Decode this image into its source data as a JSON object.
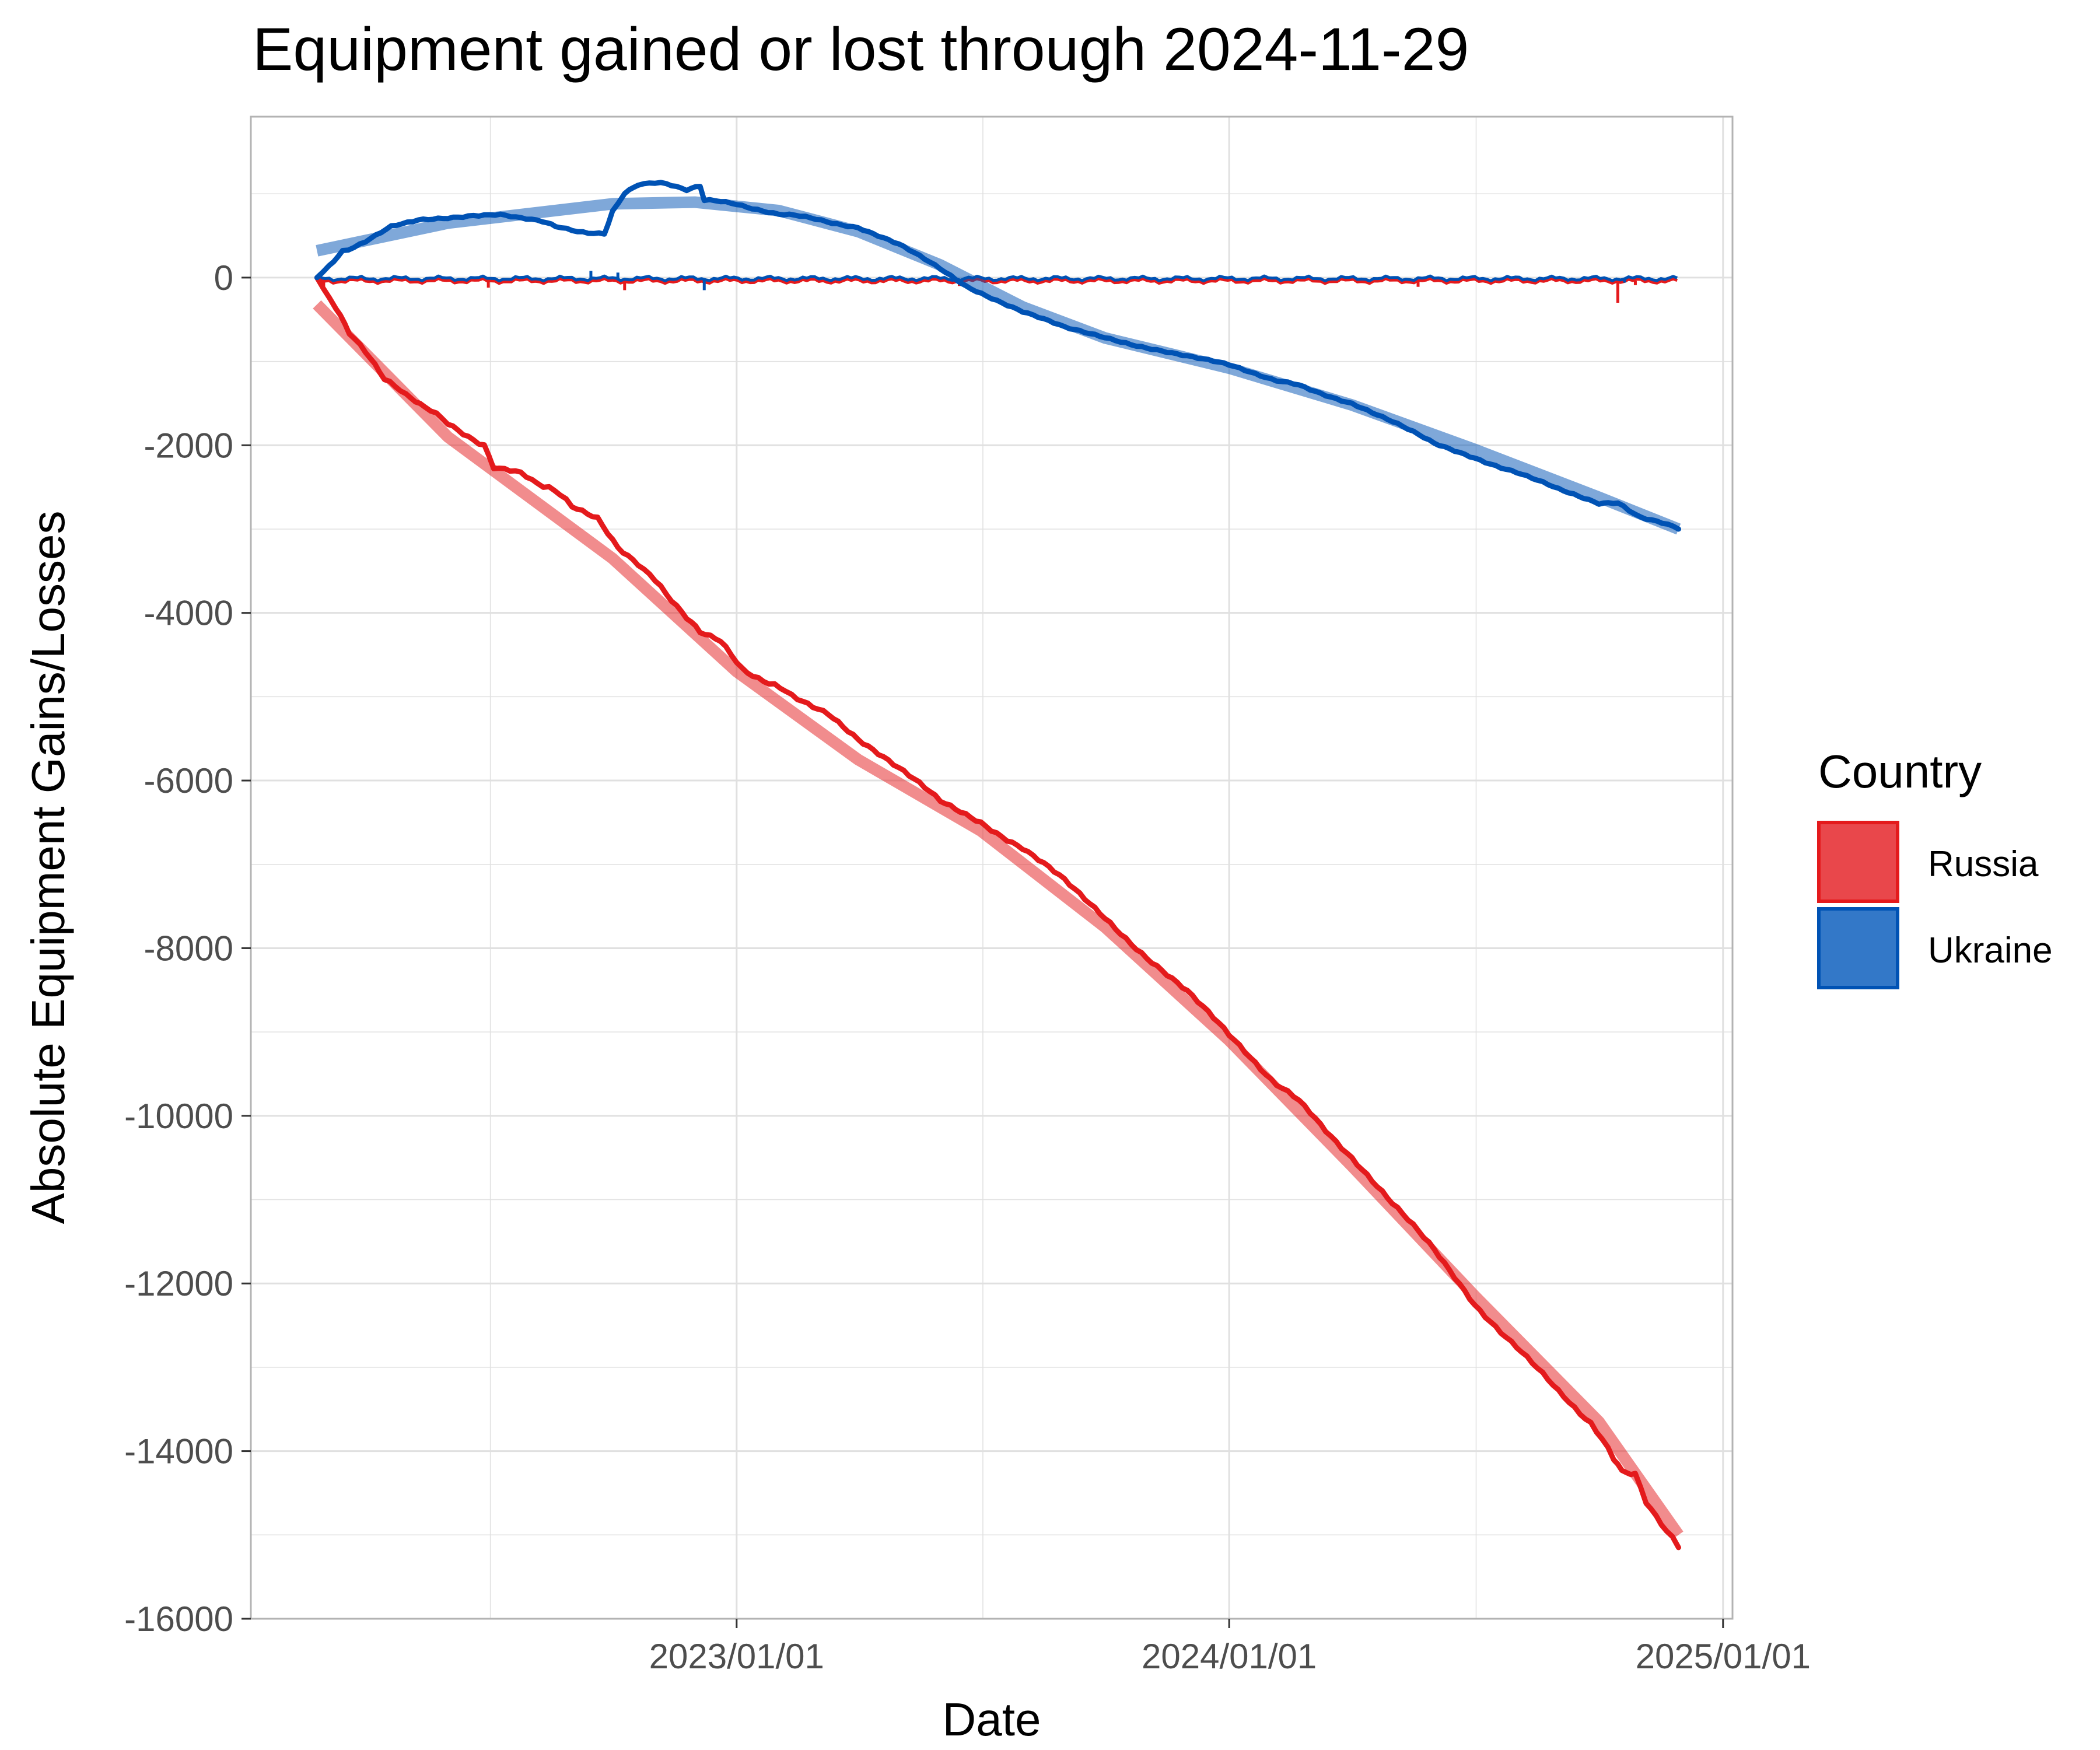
{
  "chart_data": {
    "type": "line",
    "title": "Equipment gained or lost through 2024-11-29",
    "xlabel": "Date",
    "ylabel": "Absolute Equipment Gains/Losses",
    "x_ticks": [
      "2023/01/01",
      "2024/01/01",
      "2025/01/01"
    ],
    "y_ticks": [
      0,
      -2000,
      -4000,
      -6000,
      -8000,
      -10000,
      -12000,
      -14000,
      -16000
    ],
    "y_tick_labels": [
      "0",
      "-2000",
      "-4000",
      "-6000",
      "-8000",
      "-10000",
      "-12000",
      "-14000",
      "-16000"
    ],
    "xlim": [
      "2022-01-06",
      "2025-01-08"
    ],
    "ylim": [
      -16000,
      1920
    ],
    "grid": true,
    "legend": {
      "title": "Country",
      "position": "right",
      "entries": [
        "Russia",
        "Ukraine"
      ]
    },
    "colors": {
      "Russia": "#e41a1c",
      "Russia_fill": "#e9474b",
      "Ukraine": "#0052b4",
      "Ukraine_fill": "#3378c8",
      "grid": "#e0e0e0",
      "panel_border": "#b3b3b3"
    },
    "series": [
      {
        "name": "Russia",
        "cumulative": [
          [
            "2022-02-24",
            0
          ],
          [
            "2022-03-01",
            -120
          ],
          [
            "2022-03-10",
            -380
          ],
          [
            "2022-03-20",
            -650
          ],
          [
            "2022-04-01",
            -900
          ],
          [
            "2022-04-15",
            -1200
          ],
          [
            "2022-05-01",
            -1420
          ],
          [
            "2022-05-15",
            -1560
          ],
          [
            "2022-06-01",
            -1720
          ],
          [
            "2022-06-20",
            -1920
          ],
          [
            "2022-06-28",
            -2000
          ],
          [
            "2022-07-05",
            -2250
          ],
          [
            "2022-07-25",
            -2350
          ],
          [
            "2022-08-15",
            -2500
          ],
          [
            "2022-09-01",
            -2720
          ],
          [
            "2022-09-20",
            -2850
          ],
          [
            "2022-10-05",
            -3200
          ],
          [
            "2022-10-20",
            -3400
          ],
          [
            "2022-11-10",
            -3780
          ],
          [
            "2022-11-25",
            -4050
          ],
          [
            "2022-12-05",
            -4250
          ],
          [
            "2022-12-20",
            -4350
          ],
          [
            "2023-01-05",
            -4650
          ],
          [
            "2023-01-25",
            -4850
          ],
          [
            "2023-02-15",
            -5000
          ],
          [
            "2023-03-10",
            -5200
          ],
          [
            "2023-04-01",
            -5500
          ],
          [
            "2023-05-01",
            -5850
          ],
          [
            "2023-06-01",
            -6250
          ],
          [
            "2023-07-01",
            -6500
          ],
          [
            "2023-08-01",
            -6800
          ],
          [
            "2023-09-01",
            -7200
          ],
          [
            "2023-10-01",
            -7650
          ],
          [
            "2023-11-01",
            -8100
          ],
          [
            "2023-12-01",
            -8500
          ],
          [
            "2024-01-01",
            -9050
          ],
          [
            "2024-02-01",
            -9550
          ],
          [
            "2024-03-01",
            -9950
          ],
          [
            "2024-04-01",
            -10500
          ],
          [
            "2024-05-01",
            -11050
          ],
          [
            "2024-06-01",
            -11600
          ],
          [
            "2024-07-01",
            -12250
          ],
          [
            "2024-08-01",
            -12750
          ],
          [
            "2024-09-01",
            -13300
          ],
          [
            "2024-09-25",
            -13650
          ],
          [
            "2024-10-12",
            -14100
          ],
          [
            "2024-10-18",
            -14250
          ],
          [
            "2024-10-28",
            -14250
          ],
          [
            "2024-11-05",
            -14600
          ],
          [
            "2024-11-20",
            -14950
          ],
          [
            "2024-11-29",
            -15150
          ]
        ],
        "trend": [
          [
            "2022-02-24",
            -320
          ],
          [
            "2022-06-01",
            -1900
          ],
          [
            "2022-10-01",
            -3350
          ],
          [
            "2023-01-01",
            -4700
          ],
          [
            "2023-04-01",
            -5750
          ],
          [
            "2023-07-01",
            -6600
          ],
          [
            "2023-10-01",
            -7750
          ],
          [
            "2024-01-01",
            -9100
          ],
          [
            "2024-04-01",
            -10600
          ],
          [
            "2024-07-01",
            -12150
          ],
          [
            "2024-10-01",
            -13650
          ],
          [
            "2024-11-29",
            -15000
          ]
        ],
        "daily_mean": -40,
        "daily_spikes": [
          [
            "2022-03-01",
            -100
          ],
          [
            "2022-07-01",
            -120
          ],
          [
            "2022-10-10",
            -150
          ],
          [
            "2023-06-15",
            -100
          ],
          [
            "2024-05-20",
            -110
          ],
          [
            "2024-10-15",
            -300
          ],
          [
            "2024-10-28",
            -90
          ]
        ]
      },
      {
        "name": "Ukraine",
        "cumulative": [
          [
            "2022-02-24",
            0
          ],
          [
            "2022-03-05",
            150
          ],
          [
            "2022-03-15",
            320
          ],
          [
            "2022-04-01",
            420
          ],
          [
            "2022-04-20",
            600
          ],
          [
            "2022-05-10",
            700
          ],
          [
            "2022-06-01",
            720
          ],
          [
            "2022-06-20",
            750
          ],
          [
            "2022-07-10",
            740
          ],
          [
            "2022-07-25",
            700
          ],
          [
            "2022-08-10",
            680
          ],
          [
            "2022-08-20",
            600
          ],
          [
            "2022-09-05",
            560
          ],
          [
            "2022-09-25",
            520
          ],
          [
            "2022-10-01",
            800
          ],
          [
            "2022-10-10",
            1000
          ],
          [
            "2022-10-20",
            1120
          ],
          [
            "2022-11-10",
            1120
          ],
          [
            "2022-11-25",
            1050
          ],
          [
            "2022-12-05",
            1080
          ],
          [
            "2022-12-08",
            920
          ],
          [
            "2023-01-01",
            880
          ],
          [
            "2023-02-01",
            760
          ],
          [
            "2023-03-01",
            700
          ],
          [
            "2023-04-01",
            600
          ],
          [
            "2023-05-01",
            400
          ],
          [
            "2023-06-01",
            100
          ],
          [
            "2023-06-20",
            -100
          ],
          [
            "2023-08-01",
            -400
          ],
          [
            "2023-09-01",
            -600
          ],
          [
            "2023-10-01",
            -720
          ],
          [
            "2023-11-01",
            -830
          ],
          [
            "2023-12-01",
            -930
          ],
          [
            "2024-01-01",
            -1050
          ],
          [
            "2024-02-01",
            -1200
          ],
          [
            "2024-03-01",
            -1330
          ],
          [
            "2024-04-01",
            -1500
          ],
          [
            "2024-05-01",
            -1720
          ],
          [
            "2024-06-01",
            -1980
          ],
          [
            "2024-07-01",
            -2150
          ],
          [
            "2024-08-01",
            -2320
          ],
          [
            "2024-09-01",
            -2530
          ],
          [
            "2024-10-01",
            -2700
          ],
          [
            "2024-10-15",
            -2700
          ],
          [
            "2024-11-01",
            -2850
          ],
          [
            "2024-11-29",
            -3000
          ]
        ],
        "trend": [
          [
            "2022-02-24",
            320
          ],
          [
            "2022-06-01",
            650
          ],
          [
            "2022-10-01",
            880
          ],
          [
            "2022-12-01",
            900
          ],
          [
            "2023-02-01",
            800
          ],
          [
            "2023-04-01",
            550
          ],
          [
            "2023-06-01",
            150
          ],
          [
            "2023-08-01",
            -350
          ],
          [
            "2023-10-01",
            -720
          ],
          [
            "2024-01-01",
            -1080
          ],
          [
            "2024-04-01",
            -1520
          ],
          [
            "2024-07-01",
            -2050
          ],
          [
            "2024-10-01",
            -2620
          ],
          [
            "2024-11-29",
            -3000
          ]
        ],
        "daily_mean": -10,
        "daily_spikes": [
          [
            "2022-09-15",
            80
          ],
          [
            "2022-10-05",
            60
          ],
          [
            "2022-12-08",
            -150
          ],
          [
            "2024-10-20",
            -60
          ]
        ]
      }
    ]
  }
}
